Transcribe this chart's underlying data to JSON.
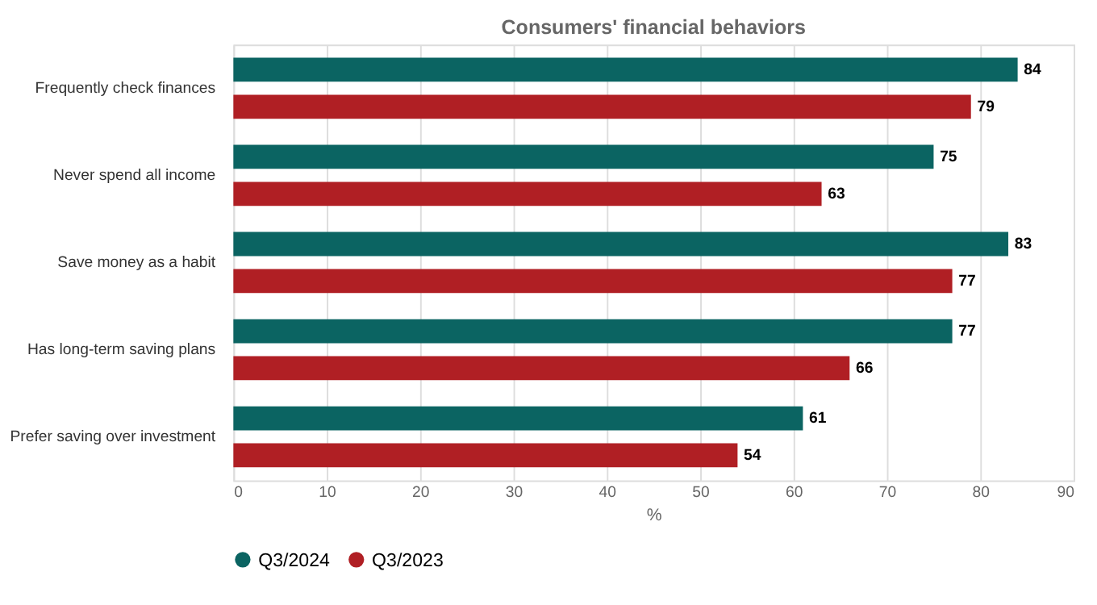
{
  "chart_data": {
    "type": "bar",
    "orientation": "horizontal",
    "title": "Consumers' financial behaviors",
    "xlabel": "%",
    "categories": [
      "Frequently check finances",
      "Never spend all income",
      "Save money as a habit",
      "Has long-term saving plans",
      "Prefer saving over investment"
    ],
    "series": [
      {
        "name": "Q3/2024",
        "color": "#0b6462",
        "values": [
          84,
          75,
          83,
          77,
          61
        ]
      },
      {
        "name": "Q3/2023",
        "color": "#b01f24",
        "values": [
          79,
          63,
          77,
          66,
          54
        ]
      }
    ],
    "xlim": [
      0,
      90
    ],
    "xticks": [
      0,
      10,
      20,
      30,
      40,
      50,
      60,
      70,
      80,
      90
    ],
    "grid": "x",
    "legend": "bottom",
    "data_labels": true
  }
}
